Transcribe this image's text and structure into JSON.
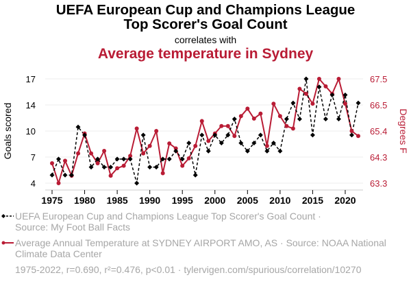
{
  "header": {
    "title_line1": "UEFA European Cup and Champions League",
    "title_line2": "Top Scorer's Goal Count",
    "subtitle": "correlates with",
    "title2": "Average temperature in Sydney"
  },
  "legend": {
    "series1_line1": "UEFA European Cup and Champions League Top Scorer's Goal Count ·",
    "series1_line2": "Source: My Foot Ball Facts",
    "series2_line1": "Average Annual Temperature at SYDNEY AIRPORT AMO, AS · Source: NOAA National",
    "series2_line2": "Climate Data Center"
  },
  "footer": "1975-2022, r=0.690, r²=0.476, p<0.01 · tylervigen.com/spurious/correlation/10270",
  "colors": {
    "series1": "#000000",
    "series2": "#b91c35",
    "grid": "#eeeeee"
  },
  "chart_data": {
    "type": "line",
    "title": "UEFA European Cup and Champions League Top Scorer's Goal Count correlates with Average temperature in Sydney",
    "x": [
      1975,
      1976,
      1977,
      1978,
      1979,
      1980,
      1981,
      1982,
      1983,
      1984,
      1985,
      1986,
      1987,
      1988,
      1989,
      1990,
      1991,
      1992,
      1993,
      1994,
      1995,
      1996,
      1997,
      1998,
      1999,
      2000,
      2001,
      2002,
      2003,
      2004,
      2005,
      2006,
      2007,
      2008,
      2009,
      2010,
      2011,
      2012,
      2013,
      2014,
      2015,
      2016,
      2017,
      2018,
      2019,
      2020,
      2021,
      2022
    ],
    "xticks": [
      "1975",
      "1980",
      "1985",
      "1990",
      "1995",
      "2000",
      "2005",
      "2010",
      "2015",
      "2020"
    ],
    "xlim": [
      1975,
      2022
    ],
    "series": [
      {
        "name": "UEFA European Cup and Champions League Top Scorer's Goal Count",
        "axis": "left",
        "style": "dashed",
        "marker": "diamond",
        "values": [
          5,
          7,
          5,
          5,
          11,
          10,
          6,
          7,
          6,
          6,
          7,
          7,
          7,
          4,
          10,
          6,
          6,
          7,
          7,
          8,
          7,
          9,
          5,
          10,
          8,
          10,
          9,
          10,
          12,
          9,
          8,
          9,
          10,
          8,
          9,
          8,
          12,
          14,
          12,
          17,
          10,
          16,
          12,
          15,
          12,
          15,
          10,
          14
        ]
      },
      {
        "name": "Average Annual Temperature at SYDNEY AIRPORT AMO, AS",
        "axis": "right",
        "style": "solid",
        "marker": "circle",
        "values": [
          64.1,
          63.3,
          64.2,
          63.6,
          64.5,
          65.3,
          64.5,
          64.1,
          64.6,
          63.6,
          63.9,
          64.0,
          64.4,
          65.5,
          64.5,
          64.8,
          65.4,
          63.7,
          64.9,
          64.7,
          64.0,
          64.3,
          64.8,
          65.8,
          65.0,
          65.3,
          65.6,
          65.6,
          65.2,
          66.0,
          66.3,
          65.9,
          66.1,
          64.8,
          66.5,
          66.0,
          65.6,
          65.5,
          67.1,
          66.9,
          66.5,
          67.5,
          67.2,
          66.9,
          67.5,
          66.5,
          65.4,
          65.2
        ]
      }
    ],
    "ylabel_left": "Goals scored",
    "ylabel_right": "Degrees F",
    "ylim_left": [
      4,
      17
    ],
    "yticks_left": [
      "4",
      "7",
      "10",
      "14",
      "17"
    ],
    "ylim_right": [
      63.3,
      67.5
    ],
    "yticks_right": [
      "63.3",
      "64.3",
      "65.4",
      "66.5",
      "67.5"
    ],
    "grid": true,
    "legend_position": "bottom"
  }
}
